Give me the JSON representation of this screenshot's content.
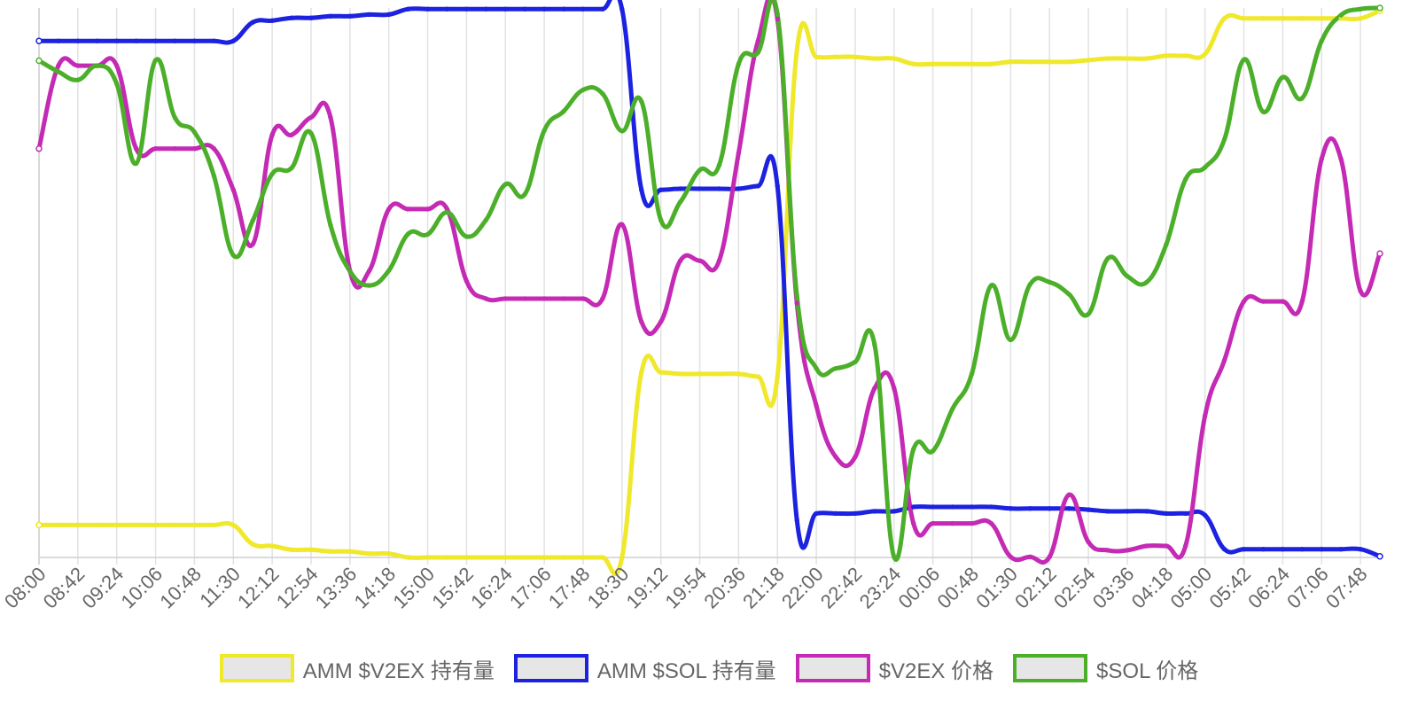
{
  "chart_data": {
    "type": "line",
    "x": [
      "08:00",
      "08:21",
      "08:42",
      "09:03",
      "09:24",
      "09:45",
      "10:06",
      "10:27",
      "10:48",
      "11:09",
      "11:30",
      "11:51",
      "12:12",
      "12:33",
      "12:54",
      "13:15",
      "13:36",
      "13:57",
      "14:18",
      "14:39",
      "15:00",
      "15:21",
      "15:42",
      "16:03",
      "16:24",
      "16:45",
      "17:06",
      "17:27",
      "17:48",
      "18:09",
      "18:30",
      "18:51",
      "19:12",
      "19:33",
      "19:54",
      "20:15",
      "20:36",
      "20:57",
      "21:18",
      "21:39",
      "22:00",
      "22:21",
      "22:42",
      "23:03",
      "23:24",
      "23:45",
      "00:06",
      "00:27",
      "00:48",
      "01:09",
      "01:30",
      "01:51",
      "02:12",
      "02:33",
      "02:54",
      "03:15",
      "03:36",
      "03:57",
      "04:18",
      "04:39",
      "05:00",
      "05:21",
      "05:42",
      "06:03",
      "06:24",
      "06:45",
      "07:06",
      "07:27",
      "07:48",
      "08:09"
    ],
    "xticks": [
      "08:00",
      "08:42",
      "09:24",
      "10:06",
      "10:48",
      "11:30",
      "12:12",
      "12:54",
      "13:36",
      "14:18",
      "15:00",
      "15:42",
      "16:24",
      "17:06",
      "17:48",
      "18:30",
      "19:12",
      "19:54",
      "20:36",
      "21:18",
      "22:00",
      "22:42",
      "23:24",
      "00:06",
      "00:48",
      "01:30",
      "02:12",
      "02:54",
      "03:36",
      "04:18",
      "05:00",
      "05:42",
      "06:24",
      "07:06",
      "07:48"
    ],
    "ylim": [
      0,
      100
    ],
    "grid": true,
    "legend_position": "bottom",
    "series": [
      {
        "name": "AMM $V2EX 持有量",
        "color": "#f0e82a",
        "values": [
          5.9,
          5.9,
          5.9,
          5.9,
          5.9,
          5.9,
          5.9,
          5.9,
          5.9,
          5.9,
          5.9,
          2.4,
          2.1,
          1.4,
          1.4,
          1.1,
          1.1,
          0.7,
          0.7,
          0,
          0,
          0,
          0,
          0,
          0,
          0,
          0,
          0,
          0,
          0,
          0,
          33.7,
          33.7,
          33.4,
          33.4,
          33.4,
          33.4,
          32.9,
          32.9,
          92.3,
          91.1,
          91.1,
          91.1,
          90.8,
          90.8,
          89.8,
          89.8,
          89.8,
          89.8,
          89.8,
          90.2,
          90.2,
          90.2,
          90.2,
          90.5,
          90.8,
          90.8,
          90.8,
          91.3,
          91.3,
          91.6,
          98.1,
          98.1,
          98.1,
          98.1,
          98.1,
          98.1,
          98.1,
          98.1,
          99.5
        ]
      },
      {
        "name": "AMM $SOL 持有量",
        "color": "#1c22e0",
        "values": [
          94.0,
          94.0,
          94.0,
          94.0,
          94.0,
          94.0,
          94.0,
          94.0,
          94.0,
          94.0,
          94.0,
          97.4,
          97.7,
          98.2,
          98.2,
          98.5,
          98.5,
          98.8,
          98.8,
          99.8,
          99.8,
          99.8,
          99.8,
          99.8,
          99.8,
          99.8,
          99.8,
          99.8,
          99.8,
          99.8,
          99.8,
          66.9,
          66.9,
          67.1,
          67.1,
          67.1,
          67.1,
          67.6,
          67.6,
          6.8,
          8.0,
          8.0,
          8.0,
          8.4,
          8.4,
          9.2,
          9.2,
          9.2,
          9.2,
          9.2,
          8.9,
          8.9,
          8.9,
          8.9,
          8.7,
          8.4,
          8.4,
          8.4,
          8.0,
          8.0,
          7.7,
          1.5,
          1.5,
          1.5,
          1.5,
          1.5,
          1.5,
          1.5,
          1.5,
          0.2
        ]
      },
      {
        "name": "$V2EX 价格",
        "color": "#c42ab4",
        "values": [
          74.4,
          89.5,
          89.5,
          89.5,
          89.5,
          74.4,
          74.4,
          74.4,
          74.4,
          74.4,
          66.9,
          57.0,
          76.9,
          76.9,
          80.1,
          80.1,
          52.2,
          52.2,
          63.4,
          63.4,
          63.4,
          63.4,
          50.3,
          47.1,
          47.1,
          47.1,
          47.1,
          47.1,
          47.1,
          47.1,
          60.6,
          42.9,
          42.9,
          54.0,
          54.0,
          54.0,
          73.6,
          94.0,
          98.0,
          46.3,
          27.6,
          18.3,
          18.3,
          30.8,
          30.8,
          6.2,
          6.2,
          6.2,
          6.2,
          6.2,
          0.1,
          0.1,
          0.1,
          11.4,
          2.8,
          1.3,
          1.3,
          2.1,
          2.1,
          2.1,
          25.8,
          35.9,
          46.6,
          46.6,
          46.6,
          46.6,
          72.5,
          72.5,
          48.5,
          55.3
        ]
      },
      {
        "name": "$SOL 价格",
        "color": "#4caf2a",
        "values": [
          90.4,
          88.4,
          86.9,
          89.5,
          86.2,
          71.7,
          90.5,
          80.0,
          77.4,
          69.5,
          55.0,
          61.3,
          69.8,
          70.9,
          77.2,
          60.5,
          52.1,
          49.5,
          52.2,
          58.9,
          58.8,
          62.8,
          58.4,
          61.4,
          67.9,
          66.1,
          77.7,
          81.2,
          85.1,
          84.4,
          77.6,
          83.0,
          61.4,
          64.7,
          70.5,
          71.4,
          89.8,
          91.9,
          98.9,
          47.6,
          34.4,
          34.4,
          35.6,
          38.7,
          0.1,
          19.7,
          19.4,
          27.0,
          33.4,
          49.5,
          39.6,
          49.7,
          50.1,
          47.9,
          44.3,
          54.4,
          51.2,
          50.1,
          56.9,
          68.8,
          71.0,
          76.1,
          90.6,
          81.1,
          87.4,
          83.6,
          94.0,
          98.7,
          99.8,
          100.0
        ]
      }
    ]
  }
}
